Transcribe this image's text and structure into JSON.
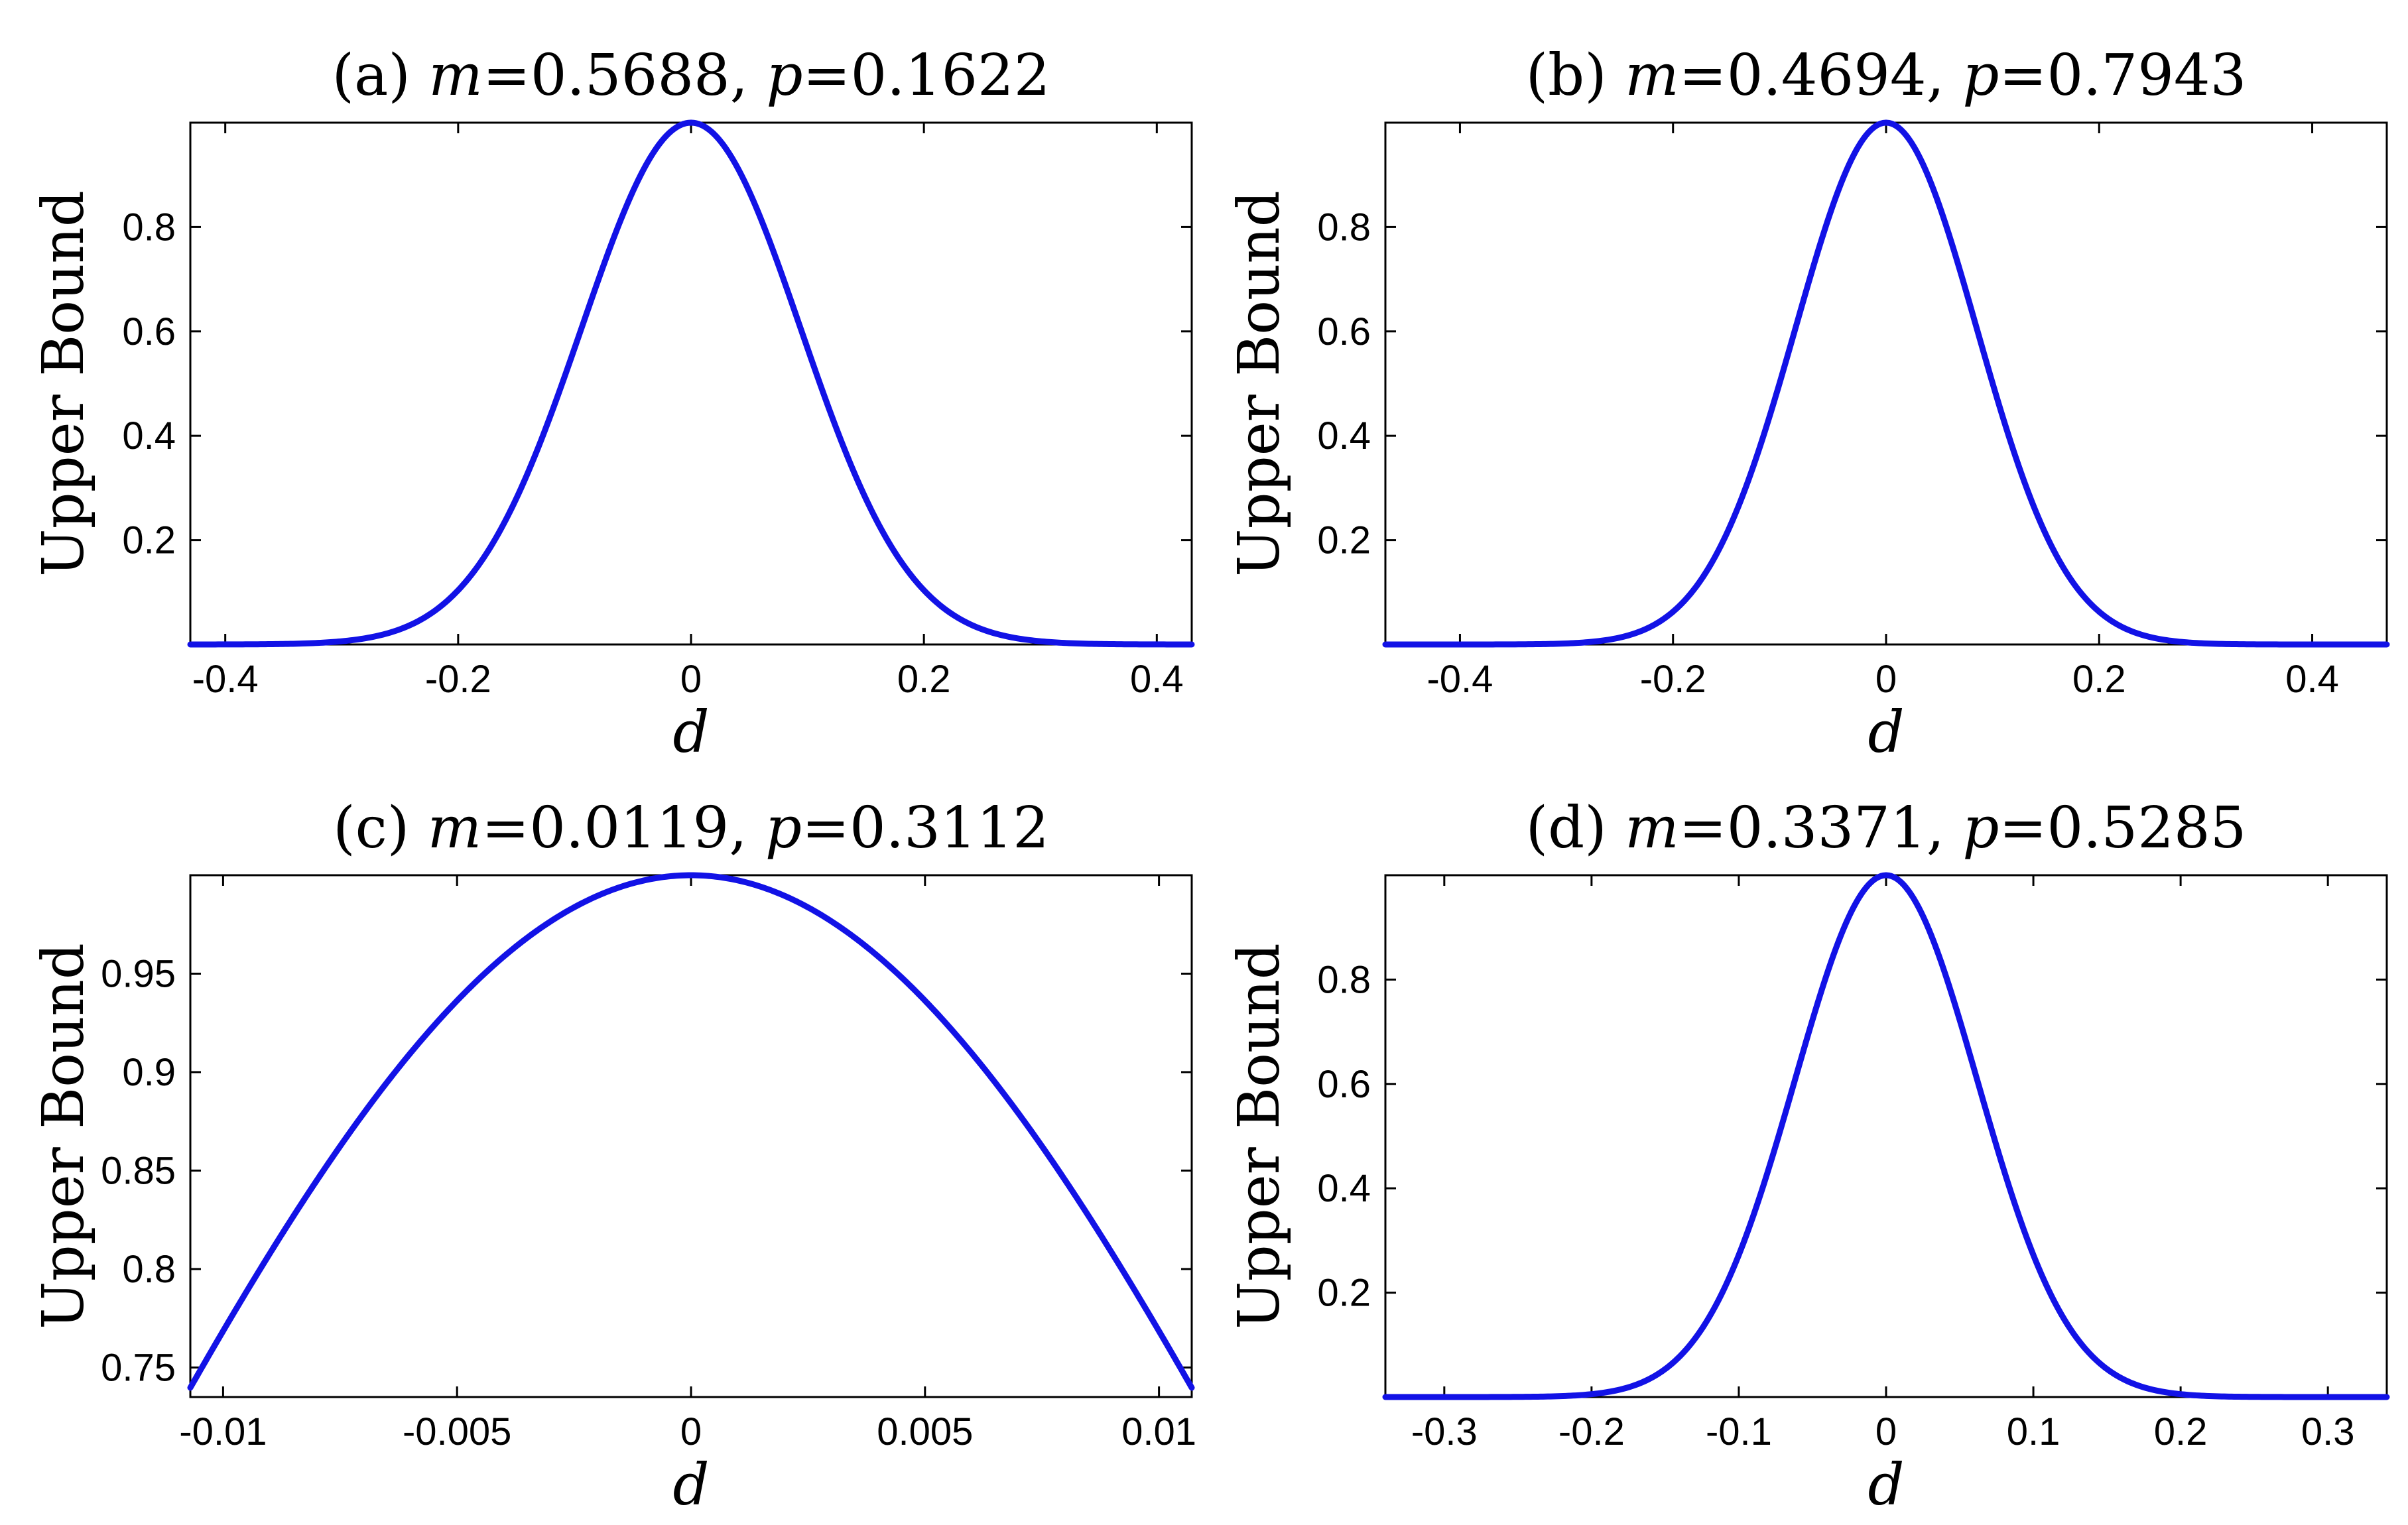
{
  "colors": {
    "curve": "#1212e6",
    "axes": "#000000"
  },
  "chart_data": [
    {
      "id": "a",
      "type": "line",
      "title_prefix": "(a) ",
      "m_symbol": "m",
      "m_value": "=0.5688, ",
      "p_symbol": "p",
      "p_value": "=0.1622",
      "xlabel": "d",
      "ylabel": "Upper Bound",
      "xlim": [
        -0.43,
        0.43
      ],
      "ylim": [
        0,
        1
      ],
      "xticks": [
        -0.4,
        -0.2,
        0,
        0.2,
        0.4
      ],
      "xtick_labels": [
        "-0.4",
        "-0.2",
        "0",
        "0.2",
        "0.4"
      ],
      "yticks": [
        0.2,
        0.4,
        0.6,
        0.8
      ],
      "ytick_labels": [
        "0.2",
        "0.4",
        "0.6",
        "0.8"
      ],
      "series": [
        {
          "name": "Upper Bound",
          "shape": "gaussian",
          "peak": 1,
          "center": 0,
          "sigma": 0.094
        }
      ]
    },
    {
      "id": "b",
      "type": "line",
      "title_prefix": "(b) ",
      "m_symbol": "m",
      "m_value": "=0.4694, ",
      "p_symbol": "p",
      "p_value": "=0.7943",
      "xlabel": "d",
      "ylabel": "Upper Bound",
      "xlim": [
        -0.47,
        0.47
      ],
      "ylim": [
        0,
        1
      ],
      "xticks": [
        -0.4,
        -0.2,
        0,
        0.2,
        0.4
      ],
      "xtick_labels": [
        "-0.4",
        "-0.2",
        "0",
        "0.2",
        "0.4"
      ],
      "yticks": [
        0.2,
        0.4,
        0.6,
        0.8
      ],
      "ytick_labels": [
        "0.2",
        "0.4",
        "0.6",
        "0.8"
      ],
      "series": [
        {
          "name": "Upper Bound",
          "shape": "gaussian",
          "peak": 1,
          "center": 0,
          "sigma": 0.085
        }
      ]
    },
    {
      "id": "c",
      "type": "line",
      "title_prefix": "(c) ",
      "m_symbol": "m",
      "m_value": "=0.0119, ",
      "p_symbol": "p",
      "p_value": "=0.3112",
      "xlabel": "d",
      "ylabel": "Upper Bound",
      "xlim": [
        -0.0107,
        0.0107
      ],
      "ylim": [
        0.735,
        1
      ],
      "xticks": [
        -0.01,
        -0.005,
        0,
        0.005,
        0.01
      ],
      "xtick_labels": [
        "-0.01",
        "-0.005",
        "0",
        "0.005",
        "0.01"
      ],
      "yticks": [
        0.75,
        0.8,
        0.85,
        0.9,
        0.95
      ],
      "ytick_labels": [
        "0.75",
        "0.8",
        "0.85",
        "0.9",
        "0.95"
      ],
      "series": [
        {
          "name": "Upper Bound",
          "shape": "gaussian",
          "peak": 1,
          "center": 0,
          "sigma": 0.01378
        }
      ]
    },
    {
      "id": "d",
      "type": "line",
      "title_prefix": "(d) ",
      "m_symbol": "m",
      "m_value": "=0.3371, ",
      "p_symbol": "p",
      "p_value": "=0.5285",
      "xlabel": "d",
      "ylabel": "Upper Bound",
      "xlim": [
        -0.34,
        0.34
      ],
      "ylim": [
        0,
        1
      ],
      "xticks": [
        -0.3,
        -0.2,
        -0.1,
        0,
        0.1,
        0.2,
        0.3
      ],
      "xtick_labels": [
        "-0.3",
        "-0.2",
        "-0.1",
        "0",
        "0.1",
        "0.2",
        "0.3"
      ],
      "yticks": [
        0.2,
        0.4,
        0.6,
        0.8
      ],
      "ytick_labels": [
        "0.2",
        "0.4",
        "0.6",
        "0.8"
      ],
      "series": [
        {
          "name": "Upper Bound",
          "shape": "gaussian",
          "peak": 1,
          "center": 0,
          "sigma": 0.062
        }
      ]
    }
  ]
}
